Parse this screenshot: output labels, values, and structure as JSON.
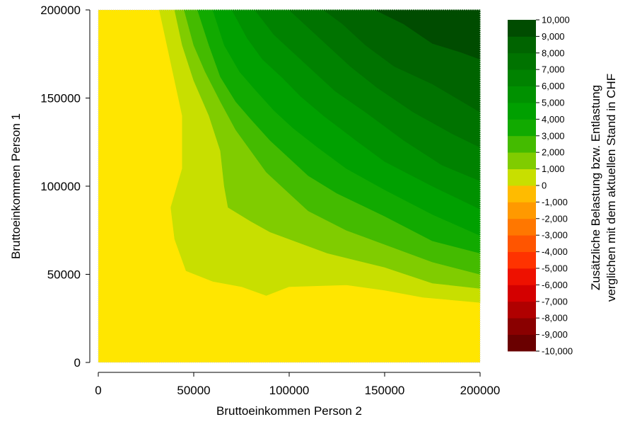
{
  "chart_data": {
    "type": "heatmap",
    "subtype": "filled-contour",
    "xlabel": "Bruttoeinkommen Person 2",
    "ylabel": "Bruttoeinkommen Person 1",
    "xlim": [
      0,
      200000
    ],
    "ylim": [
      0,
      200000
    ],
    "x_ticks": [
      "0",
      "50000",
      "100000",
      "150000",
      "200000"
    ],
    "y_ticks": [
      "0",
      "50000",
      "100000",
      "150000",
      "200000"
    ],
    "x_tick_values": [
      0,
      50000,
      100000,
      150000,
      200000
    ],
    "y_tick_values": [
      0,
      50000,
      100000,
      150000,
      200000
    ],
    "grid": false,
    "colorbar": {
      "title_line1": "Zusätzliche Belastung bzw. Entlastung",
      "title_line2": "verglichen mit dem aktuellen Stand in CHF",
      "levels": [
        -10000,
        -9000,
        -8000,
        -7000,
        -6000,
        -5000,
        -4000,
        -3000,
        -2000,
        -1000,
        0,
        1000,
        2000,
        3000,
        4000,
        5000,
        6000,
        7000,
        8000,
        9000,
        10000
      ],
      "tick_labels": [
        "-10,000",
        "-9,000",
        "-8,000",
        "-7,000",
        "-6,000",
        "-5,000",
        "-4,000",
        "-3,000",
        "-2,000",
        "-1,000",
        "0",
        "1,000",
        "2,000",
        "3,000",
        "4,000",
        "5,000",
        "6,000",
        "7,000",
        "8,000",
        "9,000",
        "10,000"
      ],
      "colors": [
        "#6a0000",
        "#8a0000",
        "#b00000",
        "#d40000",
        "#ee1100",
        "#ff3300",
        "#ff5500",
        "#ff7700",
        "#ff9900",
        "#ffbb00",
        "#ffe600",
        "#c8df00",
        "#80cc00",
        "#44bb00",
        "#11aa00",
        "#00a000",
        "#009100",
        "#008200",
        "#007300",
        "#006400",
        "#004c00"
      ]
    },
    "contours": [
      {
        "level": 0,
        "points": [
          [
            32000,
            200000
          ],
          [
            36000,
            180000
          ],
          [
            40000,
            160000
          ],
          [
            44000,
            140000
          ],
          [
            44000,
            110000
          ],
          [
            38000,
            88000
          ],
          [
            40000,
            70000
          ],
          [
            46000,
            52000
          ],
          [
            60000,
            46000
          ],
          [
            75000,
            43000
          ],
          [
            88000,
            38000
          ],
          [
            100000,
            43000
          ],
          [
            130000,
            44000
          ],
          [
            150000,
            41000
          ],
          [
            170000,
            37000
          ],
          [
            200000,
            34000
          ]
        ]
      },
      {
        "level": 1000,
        "points": [
          [
            40000,
            200000
          ],
          [
            44000,
            180000
          ],
          [
            50000,
            160000
          ],
          [
            58000,
            140000
          ],
          [
            64000,
            120000
          ],
          [
            66000,
            100000
          ],
          [
            68000,
            88000
          ],
          [
            80000,
            80000
          ],
          [
            90000,
            74000
          ],
          [
            100000,
            70000
          ],
          [
            120000,
            62000
          ],
          [
            150000,
            54000
          ],
          [
            175000,
            45000
          ],
          [
            200000,
            42000
          ]
        ]
      },
      {
        "level": 2000,
        "points": [
          [
            45000,
            200000
          ],
          [
            50000,
            180000
          ],
          [
            56000,
            165000
          ],
          [
            64000,
            148000
          ],
          [
            72000,
            132000
          ],
          [
            80000,
            120000
          ],
          [
            88000,
            108000
          ],
          [
            100000,
            96000
          ],
          [
            110000,
            86000
          ],
          [
            130000,
            75000
          ],
          [
            150000,
            67000
          ],
          [
            175000,
            57000
          ],
          [
            200000,
            50000
          ]
        ]
      },
      {
        "level": 3000,
        "points": [
          [
            52000,
            200000
          ],
          [
            58000,
            180000
          ],
          [
            64000,
            162000
          ],
          [
            72000,
            148000
          ],
          [
            80000,
            138000
          ],
          [
            90000,
            126000
          ],
          [
            100000,
            116000
          ],
          [
            110000,
            106000
          ],
          [
            125000,
            96000
          ],
          [
            150000,
            83000
          ],
          [
            175000,
            69000
          ],
          [
            200000,
            62000
          ]
        ]
      },
      {
        "level": 4000,
        "points": [
          [
            60000,
            200000
          ],
          [
            66000,
            180000
          ],
          [
            74000,
            165000
          ],
          [
            82000,
            155000
          ],
          [
            92000,
            143000
          ],
          [
            102000,
            133000
          ],
          [
            115000,
            122000
          ],
          [
            130000,
            110000
          ],
          [
            150000,
            98000
          ],
          [
            175000,
            84000
          ],
          [
            200000,
            72000
          ]
        ]
      },
      {
        "level": 5000,
        "points": [
          [
            70000,
            200000
          ],
          [
            78000,
            184000
          ],
          [
            86000,
            172000
          ],
          [
            96000,
            162000
          ],
          [
            106000,
            151000
          ],
          [
            118000,
            140000
          ],
          [
            135000,
            126000
          ],
          [
            150000,
            114000
          ],
          [
            175000,
            100000
          ],
          [
            200000,
            87000
          ]
        ]
      },
      {
        "level": 6000,
        "points": [
          [
            82000,
            200000
          ],
          [
            92000,
            186000
          ],
          [
            102000,
            176000
          ],
          [
            112000,
            166000
          ],
          [
            124000,
            154000
          ],
          [
            140000,
            142000
          ],
          [
            160000,
            126000
          ],
          [
            180000,
            112000
          ],
          [
            200000,
            103000
          ]
        ]
      },
      {
        "level": 7000,
        "points": [
          [
            100000,
            200000
          ],
          [
            110000,
            190000
          ],
          [
            120000,
            180000
          ],
          [
            132000,
            168000
          ],
          [
            146000,
            156000
          ],
          [
            165000,
            142000
          ],
          [
            185000,
            130000
          ],
          [
            200000,
            122000
          ]
        ]
      },
      {
        "level": 8000,
        "points": [
          [
            118000,
            200000
          ],
          [
            128000,
            192000
          ],
          [
            140000,
            180000
          ],
          [
            155000,
            168000
          ],
          [
            175000,
            158000
          ],
          [
            200000,
            142000
          ]
        ]
      },
      {
        "level": 9000,
        "points": [
          [
            145000,
            200000
          ],
          [
            160000,
            192000
          ],
          [
            175000,
            181000
          ],
          [
            190000,
            176000
          ],
          [
            200000,
            172000
          ]
        ]
      },
      {
        "level": 10000,
        "points": [
          [
            178000,
            200000
          ],
          [
            188000,
            196000
          ],
          [
            200000,
            194000
          ]
        ]
      }
    ]
  }
}
